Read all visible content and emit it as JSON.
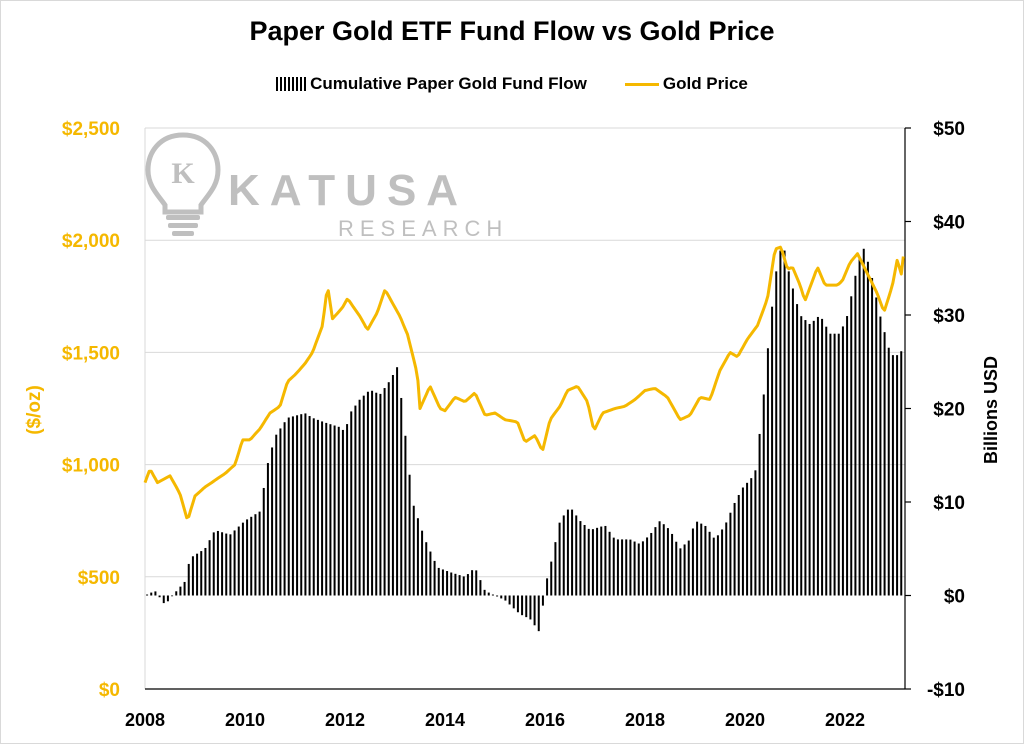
{
  "colors": {
    "gold": "#F5B800",
    "bars": "#000000",
    "grid": "#d9d9d9",
    "axis": "#000000"
  },
  "logo": {
    "name": "KATUSA",
    "sub": "RESEARCH",
    "glyph": "K"
  },
  "chart_data": {
    "type": "bar+line",
    "title": "Paper Gold ETF Fund Flow vs Gold Price",
    "legend": [
      "Cumulative Paper Gold Fund Flow",
      "Gold Price"
    ],
    "legend_position": "top-center",
    "grid": "horizontal",
    "x_axis": {
      "range": [
        2008,
        2023.2
      ],
      "ticks": [
        "2008",
        "2010",
        "2012",
        "2014",
        "2016",
        "2018",
        "2020",
        "2022"
      ],
      "tick_values": [
        2008,
        2010,
        2012,
        2014,
        2016,
        2018,
        2020,
        2022
      ]
    },
    "y_left": {
      "label": "($/oz)",
      "range": [
        0,
        2500
      ],
      "ticks": [
        "$0",
        "$500",
        "$1,000",
        "$1,500",
        "$2,000",
        "$2,500"
      ],
      "tick_values": [
        0,
        500,
        1000,
        1500,
        2000,
        2500
      ]
    },
    "y_right": {
      "label": "Billions USD",
      "range": [
        -10,
        50
      ],
      "ticks": [
        "-$10",
        "$0",
        "$10",
        "$20",
        "$30",
        "$40",
        "$50"
      ],
      "tick_values": [
        -10,
        0,
        10,
        20,
        30,
        40,
        50
      ]
    },
    "fund_flow_keypoints": [
      [
        2008.0,
        0
      ],
      [
        2008.2,
        0.5
      ],
      [
        2008.4,
        -1.0
      ],
      [
        2008.6,
        0.3
      ],
      [
        2008.8,
        1.5
      ],
      [
        2008.9,
        4.0
      ],
      [
        2009.2,
        5.0
      ],
      [
        2009.4,
        7.0
      ],
      [
        2009.7,
        6.5
      ],
      [
        2010.0,
        8.0
      ],
      [
        2010.3,
        9.0
      ],
      [
        2010.45,
        14.0
      ],
      [
        2010.6,
        17.0
      ],
      [
        2010.85,
        19.0
      ],
      [
        2011.2,
        19.5
      ],
      [
        2011.35,
        19.0
      ],
      [
        2011.6,
        18.5
      ],
      [
        2011.9,
        18.0
      ],
      [
        2012.0,
        17.5
      ],
      [
        2012.1,
        19.5
      ],
      [
        2012.3,
        21.0
      ],
      [
        2012.5,
        22.0
      ],
      [
        2012.7,
        21.5
      ],
      [
        2012.9,
        23.0
      ],
      [
        2013.05,
        24.5
      ],
      [
        2013.15,
        20.0
      ],
      [
        2013.35,
        10.0
      ],
      [
        2013.6,
        6.0
      ],
      [
        2013.85,
        3.0
      ],
      [
        2014.1,
        2.5
      ],
      [
        2014.4,
        2.0
      ],
      [
        2014.6,
        3.0
      ],
      [
        2014.8,
        0.5
      ],
      [
        2015.0,
        0
      ],
      [
        2015.2,
        -0.5
      ],
      [
        2015.5,
        -2.0
      ],
      [
        2015.7,
        -2.5
      ],
      [
        2015.9,
        -4.0
      ],
      [
        2016.0,
        1.0
      ],
      [
        2016.1,
        3.0
      ],
      [
        2016.3,
        8.0
      ],
      [
        2016.5,
        9.5
      ],
      [
        2016.7,
        8.0
      ],
      [
        2016.9,
        7.0
      ],
      [
        2017.2,
        7.5
      ],
      [
        2017.4,
        6.0
      ],
      [
        2017.7,
        6.0
      ],
      [
        2017.9,
        5.5
      ],
      [
        2018.1,
        6.5
      ],
      [
        2018.3,
        8.0
      ],
      [
        2018.5,
        7.0
      ],
      [
        2018.7,
        5.0
      ],
      [
        2018.9,
        6.0
      ],
      [
        2019.0,
        8.0
      ],
      [
        2019.2,
        7.5
      ],
      [
        2019.4,
        6.0
      ],
      [
        2019.6,
        7.5
      ],
      [
        2019.8,
        10.0
      ],
      [
        2019.95,
        11.5
      ],
      [
        2020.2,
        13.0
      ],
      [
        2020.35,
        20.0
      ],
      [
        2020.45,
        26.0
      ],
      [
        2020.6,
        34.0
      ],
      [
        2020.75,
        38.0
      ],
      [
        2020.9,
        34.0
      ],
      [
        2021.1,
        30.0
      ],
      [
        2021.3,
        29.0
      ],
      [
        2021.5,
        30.0
      ],
      [
        2021.7,
        28.0
      ],
      [
        2021.9,
        28.0
      ],
      [
        2022.05,
        30.0
      ],
      [
        2022.2,
        34.0
      ],
      [
        2022.35,
        37.5
      ],
      [
        2022.5,
        35.0
      ],
      [
        2022.7,
        30.0
      ],
      [
        2022.9,
        26.0
      ],
      [
        2023.0,
        25.5
      ],
      [
        2023.2,
        26.5
      ]
    ],
    "gold_price_keypoints": [
      [
        2008.0,
        920
      ],
      [
        2008.1,
        980
      ],
      [
        2008.25,
        920
      ],
      [
        2008.5,
        950
      ],
      [
        2008.7,
        870
      ],
      [
        2008.85,
        750
      ],
      [
        2009.0,
        860
      ],
      [
        2009.2,
        900
      ],
      [
        2009.4,
        930
      ],
      [
        2009.6,
        960
      ],
      [
        2009.8,
        1000
      ],
      [
        2009.95,
        1110
      ],
      [
        2010.1,
        1110
      ],
      [
        2010.3,
        1160
      ],
      [
        2010.5,
        1230
      ],
      [
        2010.7,
        1260
      ],
      [
        2010.85,
        1370
      ],
      [
        2011.0,
        1400
      ],
      [
        2011.2,
        1450
      ],
      [
        2011.35,
        1500
      ],
      [
        2011.55,
        1620
      ],
      [
        2011.65,
        1800
      ],
      [
        2011.75,
        1650
      ],
      [
        2011.95,
        1700
      ],
      [
        2012.05,
        1740
      ],
      [
        2012.3,
        1660
      ],
      [
        2012.45,
        1600
      ],
      [
        2012.65,
        1680
      ],
      [
        2012.8,
        1780
      ],
      [
        2012.95,
        1720
      ],
      [
        2013.1,
        1660
      ],
      [
        2013.25,
        1580
      ],
      [
        2013.45,
        1400
      ],
      [
        2013.5,
        1250
      ],
      [
        2013.7,
        1350
      ],
      [
        2013.9,
        1250
      ],
      [
        2014.0,
        1240
      ],
      [
        2014.2,
        1300
      ],
      [
        2014.4,
        1280
      ],
      [
        2014.6,
        1320
      ],
      [
        2014.8,
        1220
      ],
      [
        2015.0,
        1230
      ],
      [
        2015.2,
        1200
      ],
      [
        2015.45,
        1190
      ],
      [
        2015.6,
        1100
      ],
      [
        2015.8,
        1130
      ],
      [
        2015.95,
        1060
      ],
      [
        2016.1,
        1200
      ],
      [
        2016.3,
        1260
      ],
      [
        2016.45,
        1330
      ],
      [
        2016.65,
        1350
      ],
      [
        2016.85,
        1280
      ],
      [
        2016.98,
        1150
      ],
      [
        2017.15,
        1230
      ],
      [
        2017.4,
        1250
      ],
      [
        2017.6,
        1260
      ],
      [
        2017.8,
        1290
      ],
      [
        2018.0,
        1330
      ],
      [
        2018.2,
        1340
      ],
      [
        2018.45,
        1300
      ],
      [
        2018.7,
        1200
      ],
      [
        2018.9,
        1220
      ],
      [
        2019.1,
        1300
      ],
      [
        2019.3,
        1290
      ],
      [
        2019.5,
        1420
      ],
      [
        2019.7,
        1500
      ],
      [
        2019.85,
        1480
      ],
      [
        2020.05,
        1560
      ],
      [
        2020.25,
        1620
      ],
      [
        2020.45,
        1740
      ],
      [
        2020.6,
        1960
      ],
      [
        2020.72,
        1970
      ],
      [
        2020.85,
        1870
      ],
      [
        2020.95,
        1880
      ],
      [
        2021.1,
        1800
      ],
      [
        2021.2,
        1730
      ],
      [
        2021.45,
        1880
      ],
      [
        2021.6,
        1800
      ],
      [
        2021.85,
        1800
      ],
      [
        2021.95,
        1820
      ],
      [
        2022.1,
        1900
      ],
      [
        2022.25,
        1940
      ],
      [
        2022.45,
        1850
      ],
      [
        2022.65,
        1760
      ],
      [
        2022.78,
        1680
      ],
      [
        2022.95,
        1800
      ],
      [
        2023.05,
        1920
      ],
      [
        2023.12,
        1840
      ],
      [
        2023.2,
        1990
      ]
    ]
  }
}
